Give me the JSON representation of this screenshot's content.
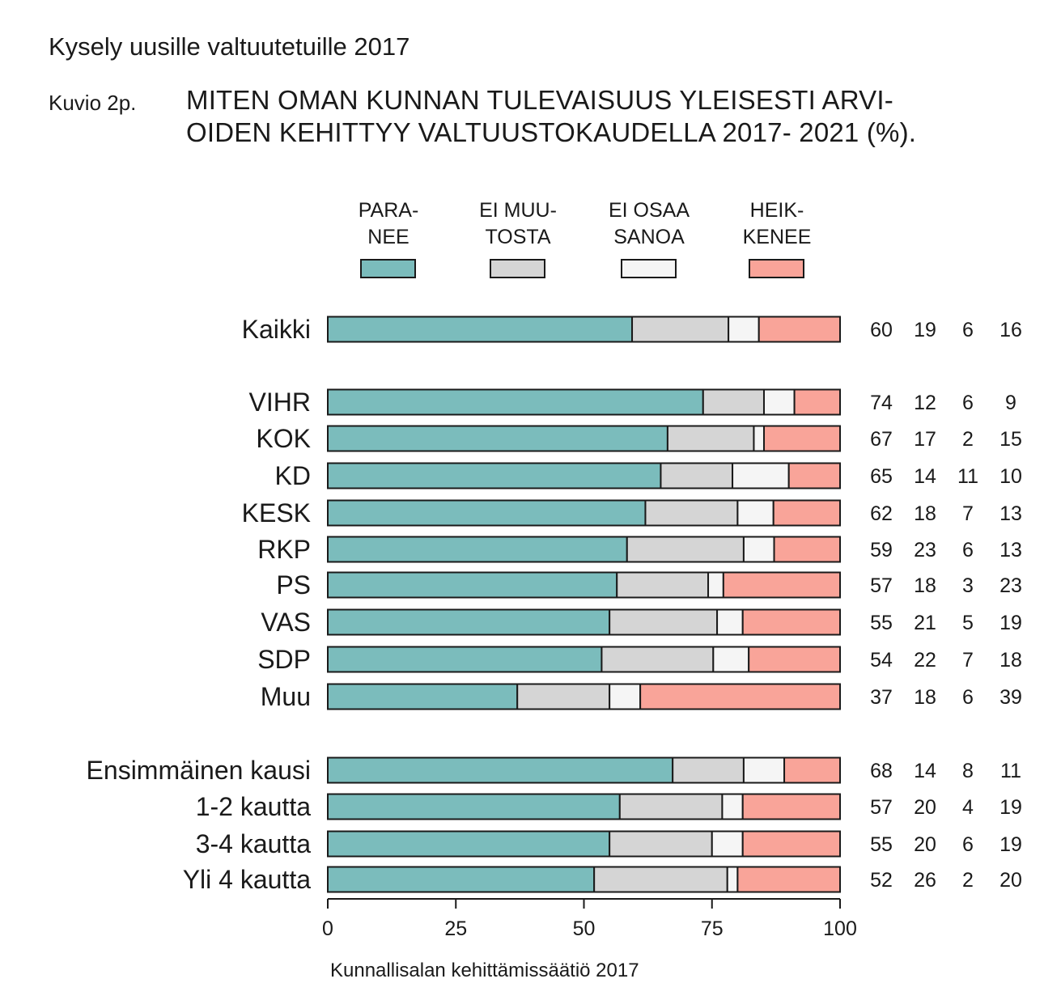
{
  "header": {
    "suptitle": "Kysely uusille valtuutetuille 2017",
    "figure_label": "Kuvio 2p.",
    "title_line1": "MITEN OMAN KUNNAN TULEVAISUUS YLEISESTI ARVI-",
    "title_line2": "OIDEN KEHITTYY VALTUUSTOKAUDELLA 2017- 2021 (%)."
  },
  "source": "Kunnallisalan kehittämissäätiö 2017",
  "chart_data": {
    "type": "bar",
    "orientation": "horizontal",
    "stacked": true,
    "title": "MITEN OMAN KUNNAN TULEVAISUUS YLEISESTI ARVIOIDEN KEHITTYY VALTUUSTOKAUDELLA 2017- 2021 (%).",
    "xlim": [
      0,
      100
    ],
    "xticks": [
      0,
      25,
      50,
      75,
      100
    ],
    "legend_position": "top",
    "grid": false,
    "series": [
      {
        "name_line1": "PARA-",
        "name_line2": "NEE",
        "color": "#7bbcbc"
      },
      {
        "name_line1": "EI MUU-",
        "name_line2": "TOSTA",
        "color": "#d5d5d5"
      },
      {
        "name_line1": "EI OSAA",
        "name_line2": "SANOA",
        "color": "#f5f5f5"
      },
      {
        "name_line1": "HEIK-",
        "name_line2": "KENEE",
        "color": "#f9a499"
      }
    ],
    "groups": [
      {
        "rows": [
          {
            "label": "Kaikki",
            "values": [
              60,
              19,
              6,
              16
            ]
          }
        ]
      },
      {
        "rows": [
          {
            "label": "VIHR",
            "values": [
              74,
              12,
              6,
              9
            ]
          },
          {
            "label": "KOK",
            "values": [
              67,
              17,
              2,
              15
            ]
          },
          {
            "label": "KD",
            "values": [
              65,
              14,
              11,
              10
            ]
          },
          {
            "label": "KESK",
            "values": [
              62,
              18,
              7,
              13
            ]
          },
          {
            "label": "RKP",
            "values": [
              59,
              23,
              6,
              13
            ]
          },
          {
            "label": "PS",
            "values": [
              57,
              18,
              3,
              23
            ]
          },
          {
            "label": "VAS",
            "values": [
              55,
              21,
              5,
              19
            ]
          },
          {
            "label": "SDP",
            "values": [
              54,
              22,
              7,
              18
            ]
          },
          {
            "label": "Muu",
            "values": [
              37,
              18,
              6,
              39
            ]
          }
        ]
      },
      {
        "rows": [
          {
            "label": "Ensimmäinen kausi",
            "values": [
              68,
              14,
              8,
              11
            ]
          },
          {
            "label": "1-2 kautta",
            "values": [
              57,
              20,
              4,
              19
            ]
          },
          {
            "label": "3-4 kautta",
            "values": [
              55,
              20,
              6,
              19
            ]
          },
          {
            "label": "Yli 4 kautta",
            "values": [
              52,
              26,
              2,
              20
            ]
          }
        ]
      }
    ]
  }
}
